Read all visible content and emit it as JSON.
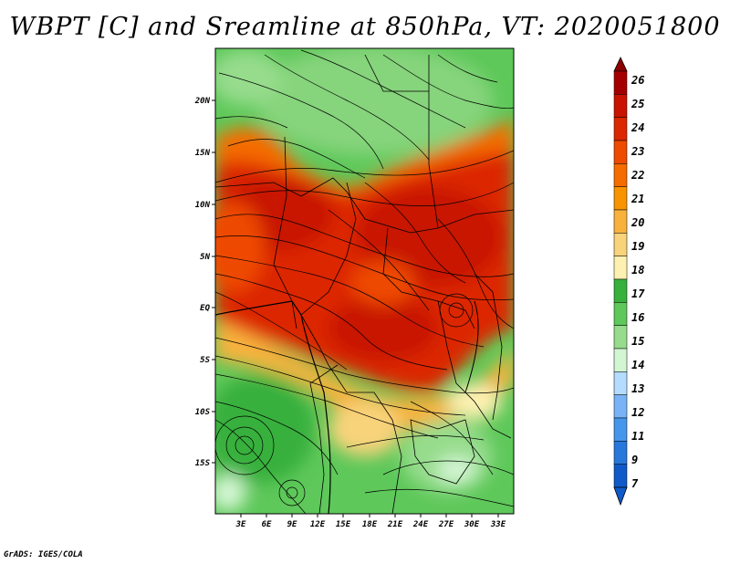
{
  "title": "WBPT [C] and Sreamline at 850hPa, VT: 2020051800",
  "credit": "GrADS: IGES/COLA",
  "map": {
    "lat_labels": [
      "20N",
      "15N",
      "10N",
      "5N",
      "EQ",
      "5S",
      "10S",
      "15S"
    ],
    "lon_labels": [
      "3E",
      "6E",
      "9E",
      "12E",
      "15E",
      "18E",
      "21E",
      "24E",
      "27E",
      "30E",
      "33E"
    ]
  },
  "colorbar": {
    "labels": [
      "26",
      "25",
      "24",
      "23",
      "22",
      "21",
      "20",
      "19",
      "18",
      "17",
      "16",
      "15",
      "14",
      "13",
      "12",
      "11",
      "9",
      "7"
    ],
    "colors": [
      "#a50000",
      "#c81400",
      "#dc2800",
      "#ee4a00",
      "#f56c00",
      "#f89400",
      "#f8b23c",
      "#f8d37a",
      "#fdf0b0",
      "#37b03c",
      "#5ec85a",
      "#96dc8c",
      "#d2f5d2",
      "#b4dcff",
      "#78b4f5",
      "#4696eb",
      "#2878dc",
      "#0f5ac8"
    ]
  }
}
